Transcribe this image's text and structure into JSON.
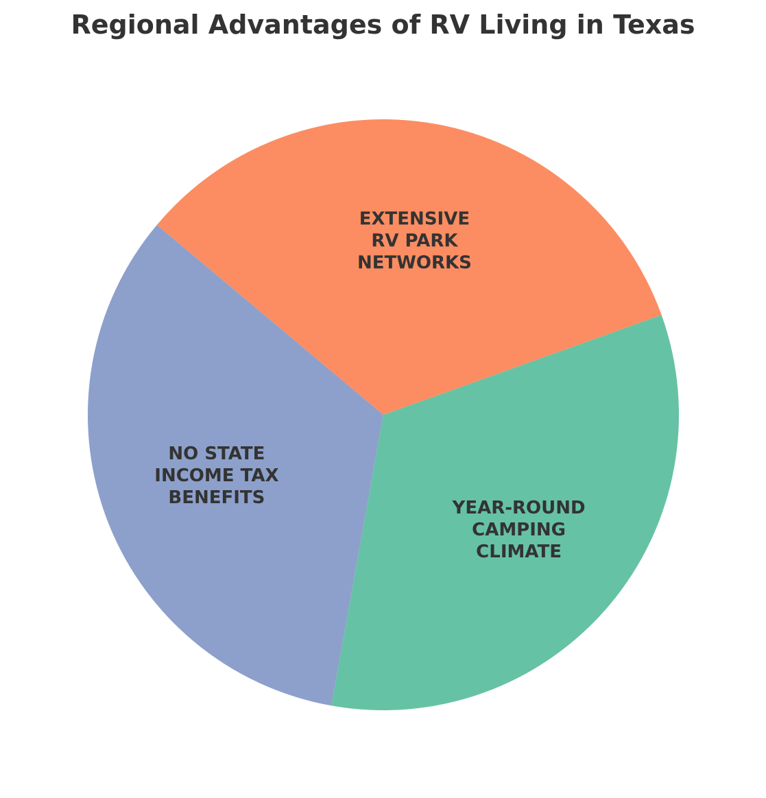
{
  "chart_data": {
    "type": "pie",
    "title": "Regional Advantages of RV Living in Texas",
    "labels": [
      "NO STATE\nINCOME TAX\nBENEFITS",
      "YEAR-ROUND\nCAMPING\nCLIMATE",
      "EXTENSIVE\nRV PARK\nNETWORKS"
    ],
    "values": [
      33.3,
      33.3,
      33.4
    ],
    "colors": [
      "#8da0cb",
      "#66c2a5",
      "#fc8d62"
    ],
    "legend": "none"
  }
}
